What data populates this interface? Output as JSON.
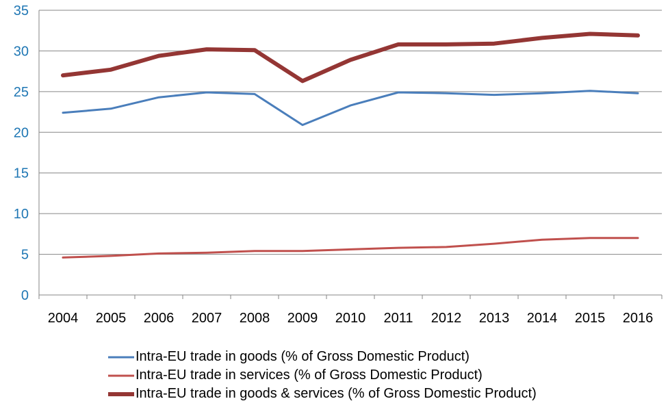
{
  "chart_data": {
    "type": "line",
    "title": "",
    "xlabel": "",
    "ylabel": "",
    "ylim": [
      0,
      35
    ],
    "yticks": [
      0,
      5,
      10,
      15,
      20,
      25,
      30,
      35
    ],
    "grid": true,
    "legend_position": "bottom",
    "categories": [
      "2004",
      "2005",
      "2006",
      "2007",
      "2008",
      "2009",
      "2010",
      "2011",
      "2012",
      "2013",
      "2014",
      "2015",
      "2016"
    ],
    "series": [
      {
        "name": "Intra-EU trade in goods (% of Gross Domestic Product)",
        "color": "#4a7ebb",
        "line_weight": "medium",
        "values": [
          22.4,
          22.9,
          24.3,
          24.9,
          24.7,
          20.9,
          23.3,
          24.9,
          24.8,
          24.6,
          24.8,
          25.1,
          24.8
        ]
      },
      {
        "name": "Intra-EU trade in services (% of Gross Domestic Product)",
        "color": "#c0504d",
        "line_weight": "medium",
        "values": [
          4.6,
          4.8,
          5.1,
          5.2,
          5.4,
          5.4,
          5.6,
          5.8,
          5.9,
          6.3,
          6.8,
          7.0,
          7.0
        ]
      },
      {
        "name": "Intra-EU trade in goods & services (% of Gross Domestic Product)",
        "color": "#943634",
        "line_weight": "heavy",
        "values": [
          27.0,
          27.7,
          29.4,
          30.2,
          30.1,
          26.3,
          28.9,
          30.8,
          30.8,
          30.9,
          31.6,
          32.1,
          31.9
        ]
      }
    ]
  }
}
